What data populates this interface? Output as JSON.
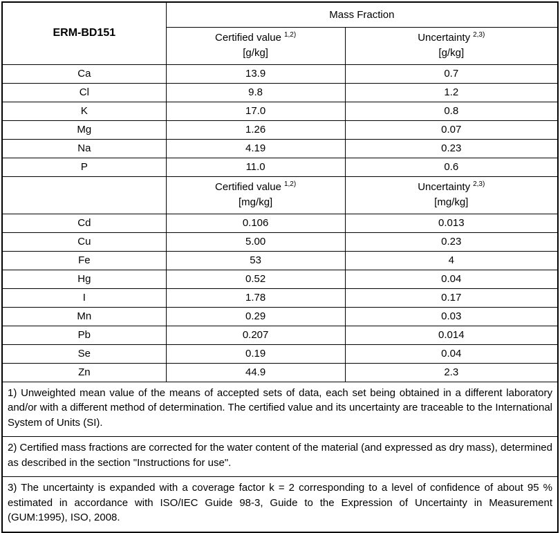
{
  "table": {
    "material_id": "ERM-BD151",
    "mass_fraction_label": "Mass Fraction",
    "sections": [
      {
        "certified_label": "Certified value",
        "certified_sup": "1,2)",
        "certified_unit": "[g/kg]",
        "uncertainty_label": "Uncertainty",
        "uncertainty_sup": "2,3)",
        "uncertainty_unit": "[g/kg]",
        "rows": [
          {
            "element": "Ca",
            "certified": "13.9",
            "uncertainty": "0.7"
          },
          {
            "element": "Cl",
            "certified": "9.8",
            "uncertainty": "1.2"
          },
          {
            "element": "K",
            "certified": "17.0",
            "uncertainty": "0.8"
          },
          {
            "element": "Mg",
            "certified": "1.26",
            "uncertainty": "0.07"
          },
          {
            "element": "Na",
            "certified": "4.19",
            "uncertainty": "0.23"
          },
          {
            "element": "P",
            "certified": "11.0",
            "uncertainty": "0.6"
          }
        ]
      },
      {
        "certified_label": "Certified value",
        "certified_sup": "1,2)",
        "certified_unit": "[mg/kg]",
        "uncertainty_label": "Uncertainty",
        "uncertainty_sup": "2,3)",
        "uncertainty_unit": "[mg/kg]",
        "rows": [
          {
            "element": "Cd",
            "certified": "0.106",
            "uncertainty": "0.013"
          },
          {
            "element": "Cu",
            "certified": "5.00",
            "uncertainty": "0.23"
          },
          {
            "element": "Fe",
            "certified": "53",
            "uncertainty": "4"
          },
          {
            "element": "Hg",
            "certified": "0.52",
            "uncertainty": "0.04"
          },
          {
            "element": "I",
            "certified": "1.78",
            "uncertainty": "0.17"
          },
          {
            "element": "Mn",
            "certified": "0.29",
            "uncertainty": "0.03"
          },
          {
            "element": "Pb",
            "certified": "0.207",
            "uncertainty": "0.014"
          },
          {
            "element": "Se",
            "certified": "0.19",
            "uncertainty": "0.04"
          },
          {
            "element": "Zn",
            "certified": "44.9",
            "uncertainty": "2.3"
          }
        ]
      }
    ],
    "footnotes": [
      "1) Unweighted mean value of the means of accepted sets of data, each set being obtained in a different laboratory and/or with a different method of determination. The certified value and its uncertainty are traceable to the International System of Units (SI).",
      "2) Certified mass fractions are corrected for the water content of the material (and expressed as dry mass), determined as described in the section \"Instructions for use\".",
      "3) The uncertainty is expanded with a coverage factor k = 2 corresponding to a level of confidence of about 95 % estimated in accordance with ISO/IEC Guide 98-3, Guide to the Expression of Uncertainty in Measurement (GUM:1995), ISO, 2008."
    ]
  }
}
